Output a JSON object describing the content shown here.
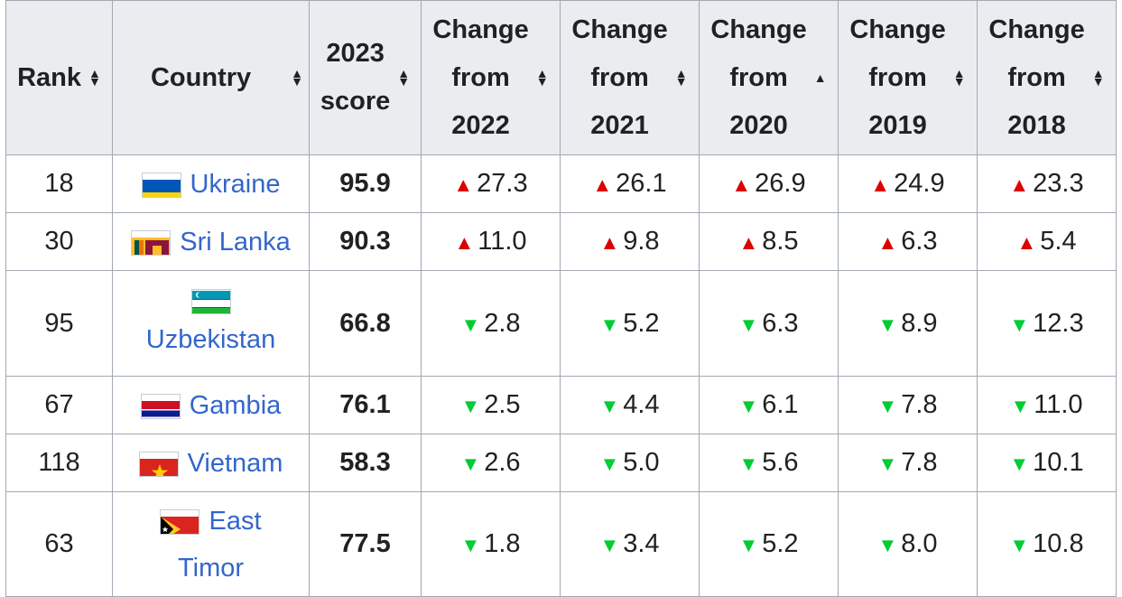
{
  "columns": [
    {
      "label": [
        "Rank"
      ],
      "sort": "both"
    },
    {
      "label": [
        "Country"
      ],
      "sort": "both"
    },
    {
      "label": [
        "2023",
        "score"
      ],
      "sort": "both"
    },
    {
      "label": [
        "Change",
        "from",
        "2022"
      ],
      "sort": "both"
    },
    {
      "label": [
        "Change",
        "from",
        "2021"
      ],
      "sort": "both"
    },
    {
      "label": [
        "Change",
        "from",
        "2020"
      ],
      "sort": "up"
    },
    {
      "label": [
        "Change",
        "from",
        "2019"
      ],
      "sort": "both"
    },
    {
      "label": [
        "Change",
        "from",
        "2018"
      ],
      "sort": "both"
    }
  ],
  "rows": [
    {
      "rank": "18",
      "country": "Ukraine",
      "flag": "ukraine-flag-icon",
      "score": "95.9",
      "changes": [
        {
          "dir": "up",
          "value": "27.3"
        },
        {
          "dir": "up",
          "value": "26.1"
        },
        {
          "dir": "up",
          "value": "26.9"
        },
        {
          "dir": "up",
          "value": "24.9"
        },
        {
          "dir": "up",
          "value": "23.3"
        }
      ]
    },
    {
      "rank": "30",
      "country": "Sri Lanka",
      "flag": "sri-lanka-flag-icon",
      "score": "90.3",
      "changes": [
        {
          "dir": "up",
          "value": "11.0"
        },
        {
          "dir": "up",
          "value": "9.8"
        },
        {
          "dir": "up",
          "value": "8.5"
        },
        {
          "dir": "up",
          "value": "6.3"
        },
        {
          "dir": "up",
          "value": "5.4"
        }
      ]
    },
    {
      "rank": "95",
      "country": "Uzbekistan",
      "flag": "uzbekistan-flag-icon",
      "score": "66.8",
      "changes": [
        {
          "dir": "down",
          "value": "2.8"
        },
        {
          "dir": "down",
          "value": "5.2"
        },
        {
          "dir": "down",
          "value": "6.3"
        },
        {
          "dir": "down",
          "value": "8.9"
        },
        {
          "dir": "down",
          "value": "12.3"
        }
      ]
    },
    {
      "rank": "67",
      "country": "Gambia",
      "flag": "gambia-flag-icon",
      "score": "76.1",
      "changes": [
        {
          "dir": "down",
          "value": "2.5"
        },
        {
          "dir": "down",
          "value": "4.4"
        },
        {
          "dir": "down",
          "value": "6.1"
        },
        {
          "dir": "down",
          "value": "7.8"
        },
        {
          "dir": "down",
          "value": "11.0"
        }
      ]
    },
    {
      "rank": "118",
      "country": "Vietnam",
      "flag": "vietnam-flag-icon",
      "score": "58.3",
      "changes": [
        {
          "dir": "down",
          "value": "2.6"
        },
        {
          "dir": "down",
          "value": "5.0"
        },
        {
          "dir": "down",
          "value": "5.6"
        },
        {
          "dir": "down",
          "value": "7.8"
        },
        {
          "dir": "down",
          "value": "10.1"
        }
      ]
    },
    {
      "rank": "63",
      "country": "East Timor",
      "flag": "east-timor-flag-icon",
      "score": "77.5",
      "changes": [
        {
          "dir": "down",
          "value": "1.8"
        },
        {
          "dir": "down",
          "value": "3.4"
        },
        {
          "dir": "down",
          "value": "5.2"
        },
        {
          "dir": "down",
          "value": "8.0"
        },
        {
          "dir": "down",
          "value": "10.8"
        }
      ]
    }
  ],
  "colors": {
    "up": "#dd0000",
    "down": "#00cc33",
    "link": "#3366cc",
    "header_bg": "#eaecf0",
    "border": "#a2a9b1"
  }
}
